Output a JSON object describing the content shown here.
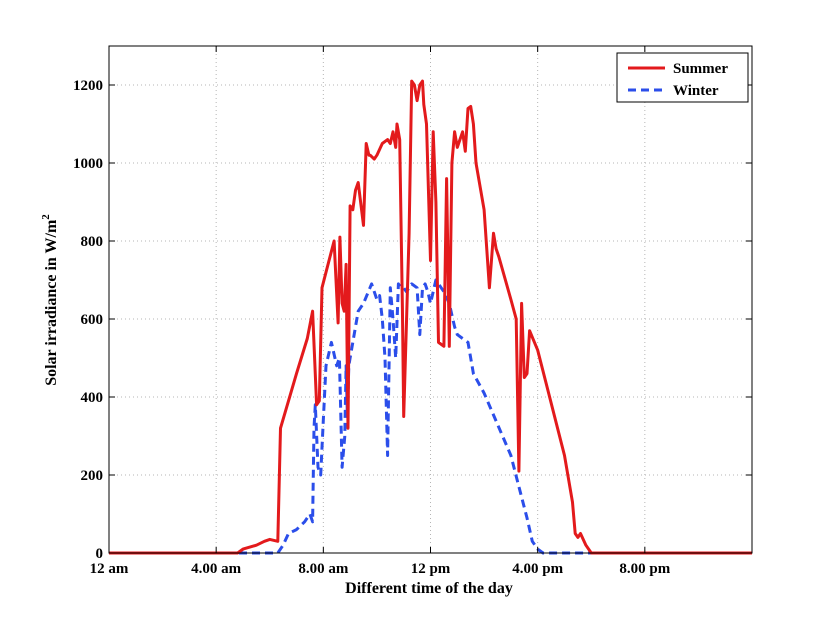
{
  "chart_data": {
    "type": "line",
    "title": "",
    "xlabel": "Different time of the day",
    "ylabel_main": "Solar irradiance in W/m",
    "ylabel_superscript": "2",
    "xlim": [
      0,
      24
    ],
    "ylim": [
      0,
      1300
    ],
    "xticks": [
      0,
      4,
      8,
      12,
      16,
      20
    ],
    "xtick_labels": [
      "12 am",
      "4.00 am",
      "8.00 am",
      "12 pm",
      "4.00 pm",
      "8.00 pm"
    ],
    "yticks": [
      0,
      200,
      400,
      600,
      800,
      1000,
      1200
    ],
    "ytick_labels": [
      "0",
      "200",
      "400",
      "600",
      "800",
      "1000",
      "1200"
    ],
    "grid": true,
    "legend_position": "top-right",
    "series": [
      {
        "name": "Summer",
        "color": "#e31a1c",
        "style": "solid",
        "x": [
          0,
          4.8,
          5.0,
          5.5,
          5.8,
          6.0,
          6.3,
          6.4,
          7.0,
          7.4,
          7.6,
          7.75,
          7.85,
          7.95,
          8.1,
          8.4,
          8.55,
          8.62,
          8.7,
          8.78,
          8.85,
          8.92,
          9.0,
          9.1,
          9.2,
          9.3,
          9.5,
          9.6,
          9.7,
          9.75,
          9.9,
          10.0,
          10.2,
          10.4,
          10.5,
          10.6,
          10.7,
          10.75,
          10.85,
          10.95,
          11.0,
          11.2,
          11.3,
          11.4,
          11.5,
          11.6,
          11.7,
          11.75,
          11.85,
          12.0,
          12.1,
          12.2,
          12.3,
          12.5,
          12.6,
          12.7,
          12.8,
          12.9,
          13.0,
          13.2,
          13.3,
          13.4,
          13.5,
          13.6,
          13.7,
          14.0,
          14.2,
          14.35,
          14.45,
          14.55,
          15.0,
          15.2,
          15.3,
          15.4,
          15.5,
          15.6,
          15.7,
          16.0,
          17.0,
          17.3,
          17.4,
          17.5,
          17.6,
          17.8,
          18.0,
          18.3,
          24
        ],
        "y": [
          0,
          0,
          10,
          20,
          30,
          35,
          30,
          320,
          460,
          550,
          620,
          380,
          390,
          680,
          720,
          800,
          590,
          810,
          640,
          620,
          740,
          320,
          890,
          880,
          930,
          950,
          840,
          1050,
          1020,
          1020,
          1010,
          1020,
          1050,
          1060,
          1050,
          1080,
          1040,
          1100,
          1060,
          630,
          350,
          820,
          1210,
          1200,
          1160,
          1200,
          1210,
          1150,
          1100,
          750,
          1080,
          900,
          540,
          530,
          960,
          530,
          1000,
          1080,
          1040,
          1080,
          1030,
          1140,
          1145,
          1100,
          1000,
          880,
          680,
          820,
          780,
          760,
          650,
          600,
          210,
          640,
          450,
          460,
          570,
          520,
          250,
          130,
          50,
          40,
          50,
          20,
          0,
          0,
          0
        ]
      },
      {
        "name": "Winter",
        "color": "#2b4eea",
        "style": "dashed",
        "x": [
          0,
          6.3,
          6.5,
          6.7,
          7.0,
          7.3,
          7.5,
          7.6,
          7.65,
          7.7,
          7.8,
          7.9,
          8.0,
          8.1,
          8.3,
          8.5,
          8.6,
          8.7,
          8.8,
          8.85,
          8.9,
          8.95,
          9.0,
          9.1,
          9.3,
          9.5,
          9.8,
          10.0,
          10.1,
          10.2,
          10.3,
          10.4,
          10.5,
          10.6,
          10.7,
          10.8,
          10.9,
          11.0,
          11.1,
          11.3,
          11.5,
          11.6,
          11.7,
          11.8,
          11.9,
          12.0,
          12.2,
          12.4,
          12.5,
          12.7,
          12.8,
          12.9,
          13.0,
          13.2,
          13.4,
          13.6,
          14.0,
          14.5,
          15.0,
          15.3,
          15.6,
          15.8,
          16.0,
          16.2,
          16.5,
          17.0,
          24
        ],
        "y": [
          0,
          0,
          20,
          50,
          60,
          80,
          100,
          80,
          320,
          380,
          220,
          200,
          340,
          480,
          540,
          480,
          500,
          220,
          300,
          480,
          350,
          480,
          500,
          540,
          620,
          640,
          690,
          650,
          660,
          600,
          500,
          250,
          680,
          600,
          500,
          690,
          680,
          680,
          670,
          690,
          680,
          560,
          680,
          690,
          670,
          640,
          700,
          680,
          670,
          640,
          610,
          580,
          560,
          550,
          540,
          460,
          410,
          330,
          250,
          170,
          90,
          30,
          10,
          0,
          0,
          0,
          0
        ]
      }
    ]
  }
}
